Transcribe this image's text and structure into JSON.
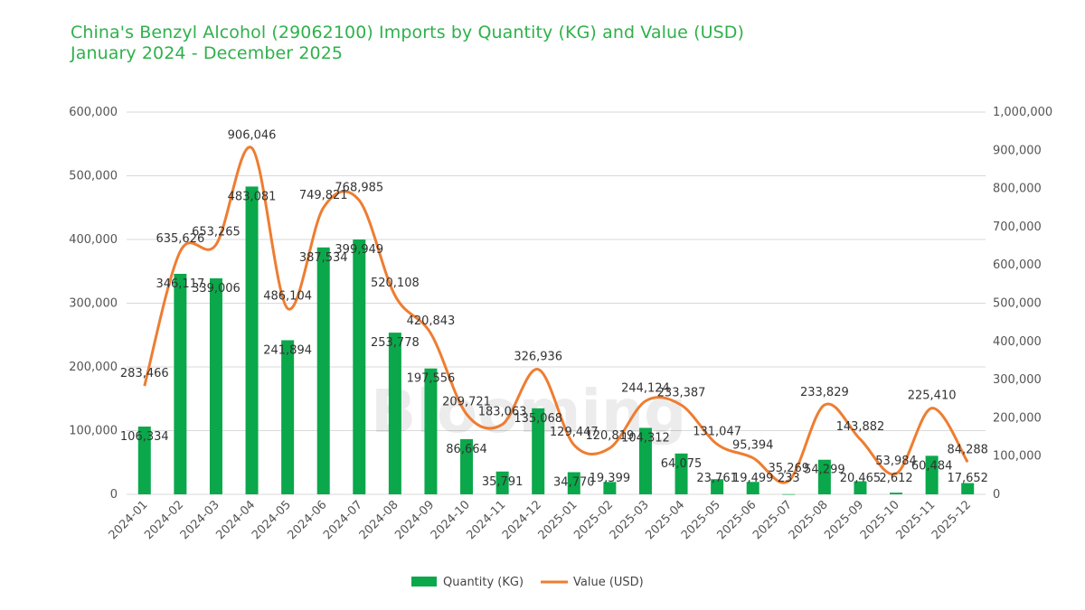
{
  "chart_data": {
    "type": "bar",
    "title": "China's Benzyl Alcohol (29062100) Imports by Quantity (KG) and Value (USD)",
    "subtitle": "January 2024 - December 2025",
    "watermark": "Blooming",
    "categories": [
      "2024-01",
      "2024-02",
      "2024-03",
      "2024-04",
      "2024-05",
      "2024-06",
      "2024-07",
      "2024-08",
      "2024-09",
      "2024-10",
      "2024-11",
      "2024-12",
      "2025-01",
      "2025-02",
      "2025-03",
      "2025-04",
      "2025-05",
      "2025-06",
      "2025-07",
      "2025-08",
      "2025-09",
      "2025-10",
      "2025-11",
      "2025-12"
    ],
    "series": [
      {
        "name": "Quantity (KG)",
        "type": "bar",
        "axis": "left",
        "color": "#0aa84a",
        "values": [
          106334,
          346117,
          339006,
          483081,
          241894,
          387534,
          399949,
          253778,
          197556,
          86664,
          35791,
          135068,
          34770,
          19399,
          104312,
          64075,
          23761,
          19499,
          233,
          54299,
          20465,
          2612,
          60484,
          17652
        ]
      },
      {
        "name": "Value (USD)",
        "type": "line",
        "axis": "right",
        "color": "#ee7d31",
        "values": [
          283466,
          635626,
          653265,
          906046,
          486104,
          749821,
          768985,
          520108,
          420843,
          209721,
          183063,
          326936,
          129447,
          120819,
          244124,
          233387,
          131047,
          95394,
          35269,
          233829,
          143882,
          53984,
          225410,
          84288
        ]
      }
    ],
    "y_left": {
      "min": 0,
      "max": 600000,
      "step": 100000,
      "ticks": [
        "0",
        "100,000",
        "200,000",
        "300,000",
        "400,000",
        "500,000",
        "600,000"
      ]
    },
    "y_right": {
      "min": 0,
      "max": 1000000,
      "step": 100000,
      "ticks": [
        "0",
        "100,000",
        "200,000",
        "300,000",
        "400,000",
        "500,000",
        "600,000",
        "700,000",
        "800,000",
        "900,000",
        "1,000,000"
      ]
    },
    "grid": true,
    "legend_position": "bottom"
  }
}
